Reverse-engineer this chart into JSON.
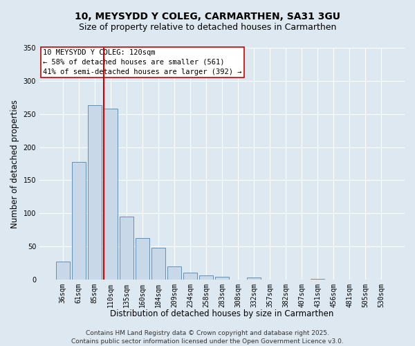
{
  "title": "10, MEYSYDD Y COLEG, CARMARTHEN, SA31 3GU",
  "subtitle": "Size of property relative to detached houses in Carmarthen",
  "xlabel": "Distribution of detached houses by size in Carmarthen",
  "ylabel": "Number of detached properties",
  "bar_labels": [
    "36sqm",
    "61sqm",
    "85sqm",
    "110sqm",
    "135sqm",
    "160sqm",
    "184sqm",
    "209sqm",
    "234sqm",
    "258sqm",
    "283sqm",
    "308sqm",
    "332sqm",
    "357sqm",
    "382sqm",
    "407sqm",
    "431sqm",
    "456sqm",
    "481sqm",
    "505sqm",
    "530sqm"
  ],
  "bar_values": [
    27,
    178,
    263,
    258,
    95,
    63,
    48,
    20,
    11,
    6,
    4,
    0,
    3,
    0,
    0,
    0,
    1,
    0,
    0,
    0,
    0
  ],
  "bar_color": "#c8d8e8",
  "bar_edge_color": "#6090b8",
  "ylim": [
    0,
    350
  ],
  "yticks": [
    0,
    50,
    100,
    150,
    200,
    250,
    300,
    350
  ],
  "vline_idx": 3,
  "vline_color": "#cc0000",
  "annotation_title": "10 MEYSYDD Y COLEG: 120sqm",
  "annotation_line2": "← 58% of detached houses are smaller (561)",
  "annotation_line3": "41% of semi-detached houses are larger (392) →",
  "footer_line1": "Contains HM Land Registry data © Crown copyright and database right 2025.",
  "footer_line2": "Contains public sector information licensed under the Open Government Licence v3.0.",
  "background_color": "#dde8f0",
  "plot_background_color": "#dde8f0",
  "grid_color": "#ffffff",
  "title_fontsize": 10,
  "subtitle_fontsize": 9,
  "axis_label_fontsize": 8.5,
  "tick_fontsize": 7,
  "annotation_fontsize": 7.5,
  "footer_fontsize": 6.5
}
